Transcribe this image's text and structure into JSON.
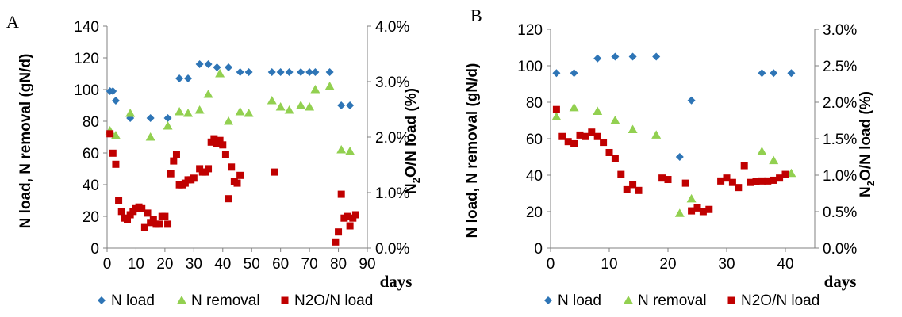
{
  "colors": {
    "n_load": "#2E75B6",
    "n_removal": "#92D050",
    "n2o": "#C00000"
  },
  "chart_data": [
    {
      "type": "scatter",
      "panel": "A",
      "xlabel": "days",
      "ylabel": "N load, N removal (gN/d)",
      "y2label": "N2O/N load (%)",
      "xlim": [
        0,
        90
      ],
      "ylim": [
        0,
        140
      ],
      "y2lim": [
        0,
        0.04
      ],
      "xticks": [
        "0",
        "10",
        "20",
        "30",
        "40",
        "50",
        "60",
        "70",
        "80",
        "90"
      ],
      "yticks": [
        "0",
        "20",
        "40",
        "60",
        "80",
        "100",
        "120",
        "140"
      ],
      "y2ticks": [
        "0.0%",
        "1.0%",
        "2.0%",
        "3.0%",
        "4.0%"
      ],
      "legend_position": "bottom",
      "grid": false,
      "series": [
        {
          "name": "N load",
          "axis": "left",
          "marker": "diamond",
          "x": [
            1,
            2,
            3,
            8,
            15,
            21,
            25,
            28,
            32,
            35,
            38,
            42,
            46,
            49,
            57,
            60,
            63,
            67,
            70,
            72,
            77,
            81,
            84
          ],
          "y": [
            99,
            99,
            93,
            82,
            82,
            82,
            107,
            107,
            116,
            116,
            114,
            114,
            111,
            111,
            111,
            111,
            111,
            111,
            111,
            111,
            111,
            90,
            90
          ]
        },
        {
          "name": "N removal",
          "axis": "left",
          "marker": "triangle",
          "x": [
            1,
            3,
            8,
            15,
            21,
            25,
            28,
            32,
            35,
            39,
            42,
            46,
            49,
            57,
            60,
            63,
            67,
            70,
            72,
            77,
            81,
            84
          ],
          "y": [
            74,
            71,
            85,
            70,
            77,
            86,
            85,
            87,
            97,
            110,
            80,
            86,
            85,
            93,
            89,
            87,
            90,
            89,
            100,
            102,
            62,
            61
          ]
        },
        {
          "name": "N2O/N load",
          "axis": "right",
          "marker": "square",
          "x": [
            1,
            2,
            3,
            4,
            5,
            6,
            7,
            8,
            9,
            10,
            11,
            12,
            13,
            14,
            15,
            16,
            17,
            18,
            19,
            20,
            21,
            22,
            23,
            24,
            25,
            26,
            27,
            28,
            29,
            30,
            32,
            33,
            34,
            35,
            36,
            37,
            38,
            39,
            40,
            41,
            42,
            43,
            44,
            45,
            46,
            58,
            79,
            80,
            81,
            82,
            83,
            84,
            85,
            86
          ],
          "y": [
            0.0206,
            0.0171,
            0.0151,
            0.0086,
            0.0066,
            0.0054,
            0.0051,
            0.006,
            0.0066,
            0.0071,
            0.0074,
            0.0071,
            0.0037,
            0.0063,
            0.0046,
            0.0051,
            0.0043,
            0.0043,
            0.0057,
            0.0057,
            0.0043,
            0.0134,
            0.0157,
            0.0169,
            0.0114,
            0.0114,
            0.0117,
            0.0123,
            0.0123,
            0.0126,
            0.0143,
            0.0137,
            0.0137,
            0.0143,
            0.0191,
            0.0197,
            0.0189,
            0.0194,
            0.0186,
            0.0169,
            0.0089,
            0.0146,
            0.012,
            0.0117,
            0.0131,
            0.0137,
            0.0011,
            0.0029,
            0.0097,
            0.0054,
            0.0057,
            0.004,
            0.0054,
            0.006
          ]
        }
      ]
    },
    {
      "type": "scatter",
      "panel": "B",
      "xlabel": "days",
      "ylabel": "N load, N removal (gN/d)",
      "y2label": "N2O/N load (%)",
      "xlim": [
        0,
        45
      ],
      "ylim": [
        0,
        120
      ],
      "y2lim": [
        0,
        0.03
      ],
      "xticks": [
        "0",
        "10",
        "20",
        "30",
        "40"
      ],
      "yticks": [
        "0",
        "20",
        "40",
        "60",
        "80",
        "100",
        "120"
      ],
      "y2ticks": [
        "0.0%",
        "0.5%",
        "1.0%",
        "1.5%",
        "2.0%",
        "2.5%",
        "3.0%"
      ],
      "legend_position": "bottom",
      "grid": false,
      "series": [
        {
          "name": "N load",
          "axis": "left",
          "marker": "diamond",
          "x": [
            1,
            4,
            8,
            11,
            14,
            18,
            22,
            24,
            36,
            38,
            41
          ],
          "y": [
            96,
            96,
            104,
            105,
            105,
            105,
            50,
            81,
            96,
            96,
            96
          ]
        },
        {
          "name": "N removal",
          "axis": "left",
          "marker": "triangle",
          "x": [
            1,
            4,
            8,
            11,
            14,
            18,
            22,
            24,
            36,
            38,
            41
          ],
          "y": [
            72,
            77,
            75,
            70,
            65,
            62,
            19,
            27,
            53,
            48,
            41
          ]
        },
        {
          "name": "N2O/N load",
          "axis": "right",
          "marker": "square",
          "x": [
            1,
            2,
            3,
            4,
            5,
            6,
            7,
            8,
            9,
            10,
            11,
            12,
            13,
            14,
            15,
            19,
            20,
            23,
            24,
            25,
            26,
            27,
            29,
            30,
            31,
            32,
            33,
            34,
            35,
            36,
            37,
            38,
            39,
            40
          ],
          "y": [
            0.019,
            0.0153,
            0.0146,
            0.0143,
            0.0155,
            0.0153,
            0.0159,
            0.0153,
            0.0145,
            0.0131,
            0.0123,
            0.0101,
            0.008,
            0.0087,
            0.0079,
            0.0096,
            0.0094,
            0.0089,
            0.0051,
            0.0055,
            0.005,
            0.0053,
            0.0092,
            0.0096,
            0.009,
            0.0083,
            0.0113,
            0.009,
            0.0091,
            0.0092,
            0.0092,
            0.0093,
            0.0096,
            0.0101
          ]
        }
      ]
    }
  ],
  "labels": {
    "panel_a": "A",
    "panel_b": "B",
    "ylabel_left": "N load, N removal (gN/d)",
    "y2label_prefix": "N",
    "y2label_sub": "2",
    "y2label_suffix": "O/N load (%)",
    "xlabel": "days",
    "legend": [
      "N load",
      "N removal",
      "N2O/N load"
    ]
  }
}
